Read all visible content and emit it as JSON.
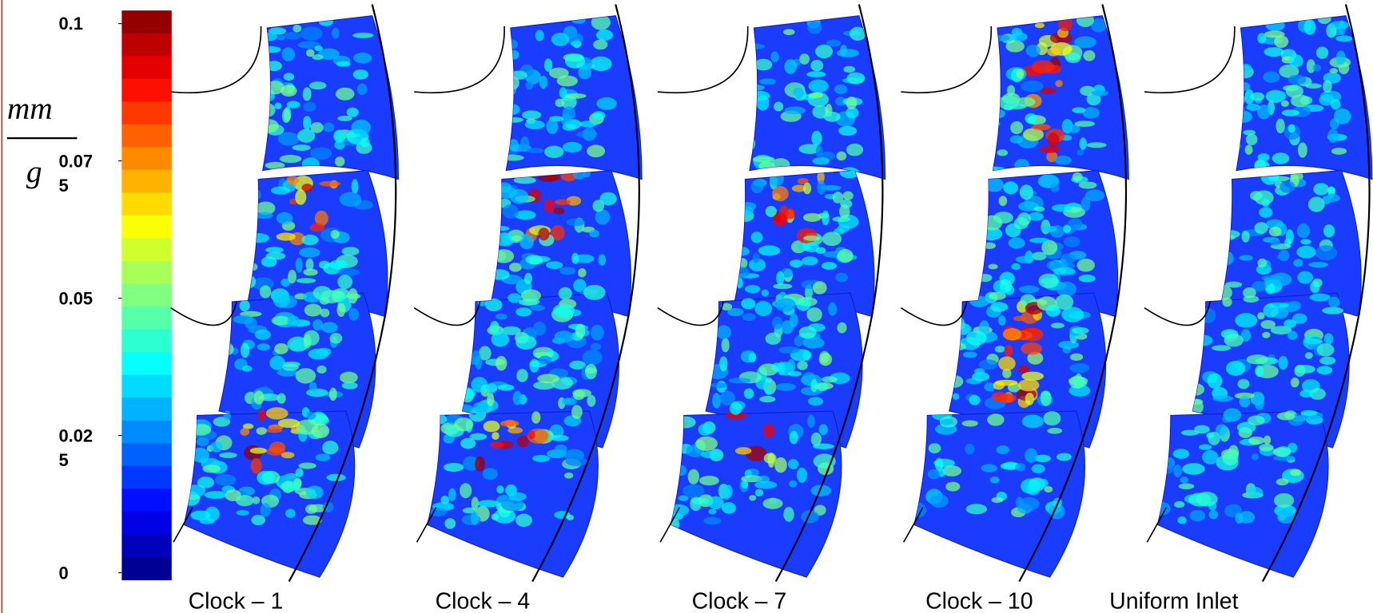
{
  "colorbar": {
    "unit": {
      "numerator": "mm",
      "denominator": "g"
    },
    "ticks": [
      {
        "value": 0.1,
        "label": [
          "0.1"
        ]
      },
      {
        "value": 0.075,
        "label": [
          "0.07",
          "5"
        ]
      },
      {
        "value": 0.05,
        "label": [
          "0.05"
        ]
      },
      {
        "value": 0.025,
        "label": [
          "0.02",
          "5"
        ]
      },
      {
        "value": 0,
        "label": [
          "0"
        ]
      }
    ]
  },
  "panels": [
    {
      "label": "Clock – 1"
    },
    {
      "label": "Clock – 4"
    },
    {
      "label": "Clock – 7"
    },
    {
      "label": "Clock – 10"
    },
    {
      "label": "Uniform Inlet"
    }
  ]
}
